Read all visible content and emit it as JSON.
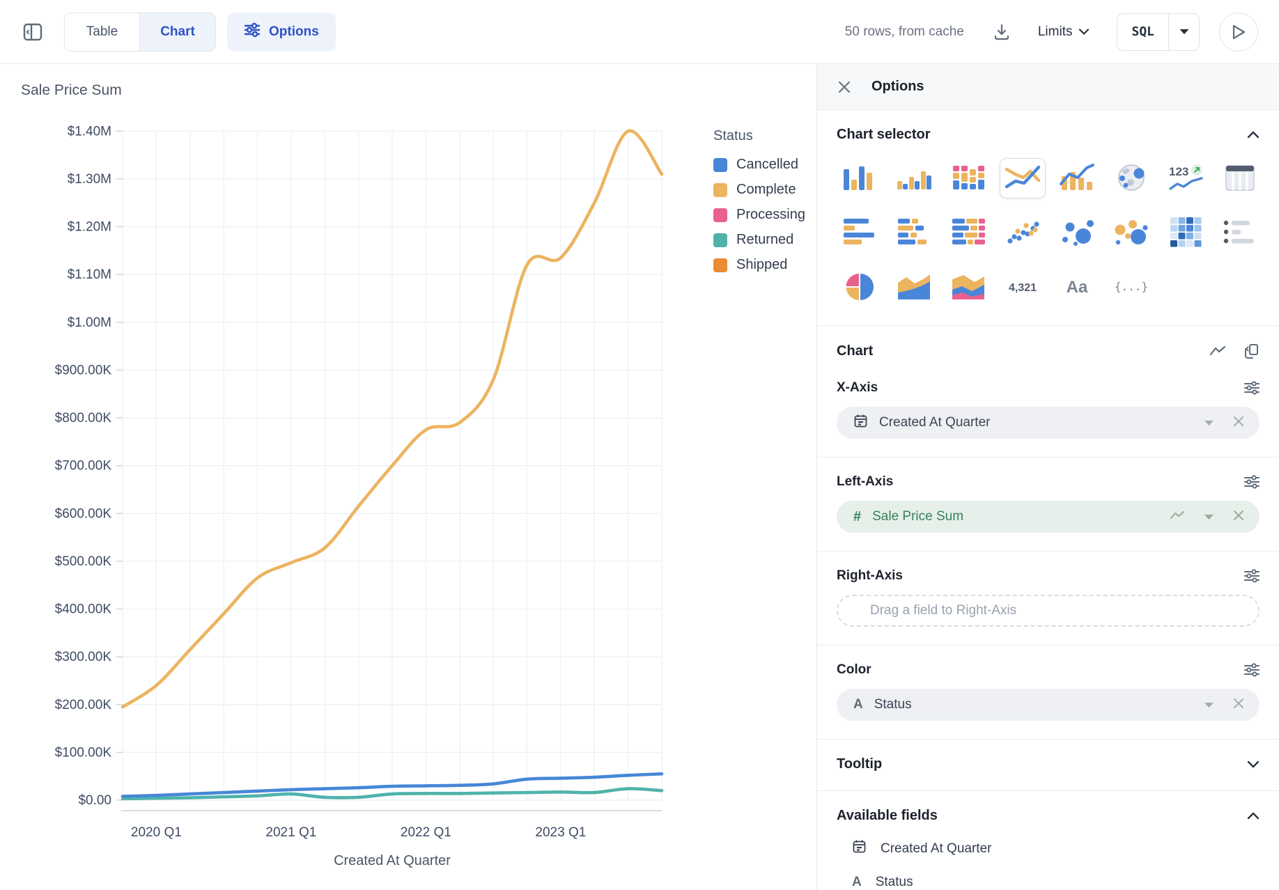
{
  "toolbar": {
    "table_tab": "Table",
    "chart_tab": "Chart",
    "options_button": "Options",
    "row_count": "50 rows, from cache",
    "limits_label": "Limits",
    "sql_label": "SQL"
  },
  "chart": {
    "title": "Sale Price Sum",
    "x_axis_title": "Created At Quarter",
    "legend_title": "Status",
    "y_tick_labels": [
      "$1.40M",
      "$1.30M",
      "$1.20M",
      "$1.10M",
      "$1.00M",
      "$900.00K",
      "$800.00K",
      "$700.00K",
      "$600.00K",
      "$500.00K",
      "$400.00K",
      "$300.00K",
      "$200.00K",
      "$100.00K",
      "$0.00"
    ],
    "x_tick_labels": [
      "2020 Q1",
      "2021 Q1",
      "2022 Q1",
      "2023 Q1"
    ]
  },
  "chart_data": {
    "type": "line",
    "x": [
      "2019 Q4",
      "2020 Q1",
      "2020 Q2",
      "2020 Q3",
      "2020 Q4",
      "2021 Q1",
      "2021 Q2",
      "2021 Q3",
      "2021 Q4",
      "2022 Q1",
      "2022 Q2",
      "2022 Q3",
      "2022 Q4",
      "2023 Q1",
      "2023 Q2",
      "2023 Q3",
      "2023 Q4"
    ],
    "x_tick_indices": [
      1,
      5,
      9,
      13
    ],
    "ylim": [
      0,
      1450000
    ],
    "y_tick_step": 100000,
    "grid": true,
    "legend_position": "right",
    "series": [
      {
        "name": "Cancelled",
        "color": "#4687d7",
        "values": [
          8000,
          10000,
          13000,
          16000,
          19000,
          22000,
          24000,
          26000,
          29000,
          30000,
          31000,
          34000,
          44000,
          46000,
          48000,
          52000,
          55000
        ]
      },
      {
        "name": "Complete",
        "color": "#ecb45f",
        "values": [
          195000,
          240000,
          315000,
          390000,
          465000,
          497000,
          528000,
          615000,
          700000,
          775000,
          790000,
          880000,
          1120000,
          1135000,
          1250000,
          1400000,
          1310000
        ]
      },
      {
        "name": "Processing",
        "color": "#e8618c",
        "values": [
          0,
          0,
          0,
          0,
          0,
          0,
          0,
          0,
          0,
          0,
          0,
          0,
          0,
          0,
          0,
          0,
          0
        ]
      },
      {
        "name": "Returned",
        "color": "#4fb3ab",
        "values": [
          3000,
          4000,
          5000,
          7000,
          9000,
          13000,
          6000,
          6000,
          13000,
          14000,
          14000,
          15000,
          16000,
          17000,
          16000,
          24000,
          20000
        ]
      },
      {
        "name": "Shipped",
        "color": "#ec8a33",
        "values": [
          0,
          0,
          0,
          0,
          0,
          0,
          0,
          0,
          0,
          0,
          0,
          0,
          0,
          0,
          0,
          0,
          0
        ]
      }
    ]
  },
  "options_panel": {
    "title": "Options",
    "chart_selector": {
      "label": "Chart selector",
      "selected": "line-chart",
      "icons": [
        {
          "name": "bar-chart"
        },
        {
          "name": "grouped-bar-chart"
        },
        {
          "name": "stacked-bar-chart"
        },
        {
          "name": "line-chart"
        },
        {
          "name": "bar-line-combo-chart"
        },
        {
          "name": "map-chart"
        },
        {
          "name": "single-value-trend",
          "text": "123"
        },
        {
          "name": "table"
        },
        {
          "name": "horizontal-bar-chart"
        },
        {
          "name": "grouped-horizontal-bar-chart"
        },
        {
          "name": "stacked-horizontal-bar-chart"
        },
        {
          "name": "scatter-plot"
        },
        {
          "name": "bubble-chart"
        },
        {
          "name": "colored-bubble-chart"
        },
        {
          "name": "heatmap"
        },
        {
          "name": "list"
        },
        {
          "name": "pie-chart"
        },
        {
          "name": "area-chart"
        },
        {
          "name": "stacked-area-chart"
        },
        {
          "name": "big-number",
          "text": "4,321"
        },
        {
          "name": "text",
          "text": "Aa"
        },
        {
          "name": "json",
          "text": "{...}"
        }
      ]
    },
    "chart_section_label": "Chart",
    "x_axis": {
      "label": "X-Axis",
      "field": "Created At Quarter",
      "field_type": "date"
    },
    "left_axis": {
      "label": "Left-Axis",
      "field": "Sale Price Sum",
      "field_type": "number"
    },
    "right_axis": {
      "label": "Right-Axis",
      "placeholder": "Drag a field to Right-Axis"
    },
    "color": {
      "label": "Color",
      "field": "Status",
      "field_type": "string"
    },
    "tooltip_label": "Tooltip",
    "available_fields": {
      "label": "Available fields",
      "fields": [
        {
          "name": "Created At Quarter",
          "type": "date"
        },
        {
          "name": "Status",
          "type": "string"
        }
      ]
    }
  }
}
